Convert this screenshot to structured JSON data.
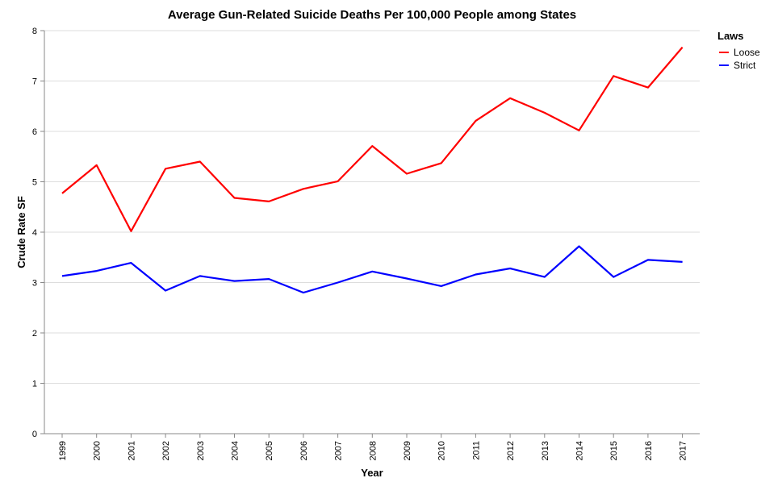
{
  "chart_data": {
    "type": "line",
    "title": "Average Gun-Related Suicide Deaths Per 100,000 People among States",
    "xlabel": "Year",
    "ylabel": "Crude Rate SF",
    "ylim": [
      0,
      8
    ],
    "yticks": [
      0,
      1,
      2,
      3,
      4,
      5,
      6,
      7,
      8
    ],
    "grid": true,
    "legend_title": "Laws",
    "legend_position": "top-right",
    "categories": [
      "1999",
      "2000",
      "2001",
      "2002",
      "2003",
      "2004",
      "2005",
      "2006",
      "2007",
      "2008",
      "2009",
      "2010",
      "2011",
      "2012",
      "2013",
      "2014",
      "2015",
      "2016",
      "2017"
    ],
    "series": [
      {
        "name": "Loose",
        "color": "#ff0000",
        "values": [
          4.77,
          5.33,
          4.02,
          5.26,
          5.4,
          4.68,
          4.61,
          4.86,
          5.01,
          5.71,
          5.16,
          5.37,
          6.21,
          6.66,
          6.37,
          6.02,
          7.1,
          6.87,
          7.67
        ]
      },
      {
        "name": "Strict",
        "color": "#0000ff",
        "values": [
          3.13,
          3.23,
          3.39,
          2.84,
          3.13,
          3.03,
          3.07,
          2.8,
          3.0,
          3.22,
          3.08,
          2.93,
          3.16,
          3.28,
          3.11,
          3.72,
          3.11,
          3.45,
          3.41
        ]
      }
    ]
  }
}
